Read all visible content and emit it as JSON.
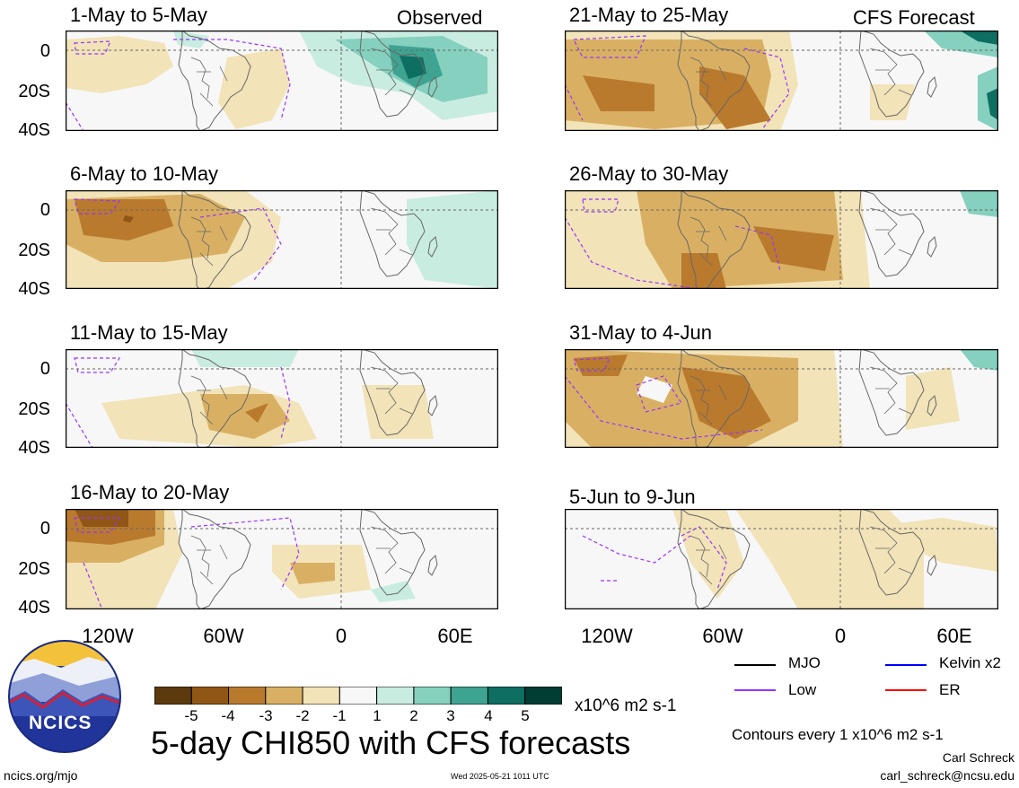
{
  "panels": [
    {
      "title": "1-May to 5-May",
      "tag": "Observed"
    },
    {
      "title": "6-May to 10-May",
      "tag": ""
    },
    {
      "title": "11-May to 15-May",
      "tag": ""
    },
    {
      "title": "16-May to 20-May",
      "tag": ""
    },
    {
      "title": "21-May to 25-May",
      "tag": "CFS Forecast"
    },
    {
      "title": "26-May to 30-May",
      "tag": ""
    },
    {
      "title": "31-May to 4-Jun",
      "tag": ""
    },
    {
      "title": "5-Jun to 9-Jun",
      "tag": ""
    }
  ],
  "y_ticks": [
    "0",
    "20S",
    "40S"
  ],
  "x_ticks": [
    "120W",
    "60W",
    "0",
    "60E"
  ],
  "colorbar": {
    "labels": [
      "-5",
      "-4",
      "-3",
      "-2",
      "-1",
      "1",
      "2",
      "3",
      "4",
      "5"
    ],
    "colors": [
      "#5c3a0e",
      "#8f5616",
      "#b97a2e",
      "#d9b063",
      "#f2e3b8",
      "#f7f7f7",
      "#c9ece1",
      "#86d0bf",
      "#3fa391",
      "#0e6e62",
      "#023d33"
    ],
    "units": "x10^6 m2 s-1"
  },
  "main_title": "5-day CHI850 with CFS forecasts",
  "legend": [
    {
      "label": "MJO",
      "color": "#000000"
    },
    {
      "label": "Kelvin x2",
      "color": "#0000ff"
    },
    {
      "label": "Low",
      "color": "#9933ff"
    },
    {
      "label": "ER",
      "color": "#ff0000"
    }
  ],
  "contours_note": "Contours every 1 x10^6 m2 s-1",
  "author": "Carl Schreck",
  "email": "carl_schreck@ncsu.edu",
  "site": "ncics.org/mjo",
  "timestamp": "Wed 2025-05-21 1011 UTC",
  "logo_text": "NCICS"
}
